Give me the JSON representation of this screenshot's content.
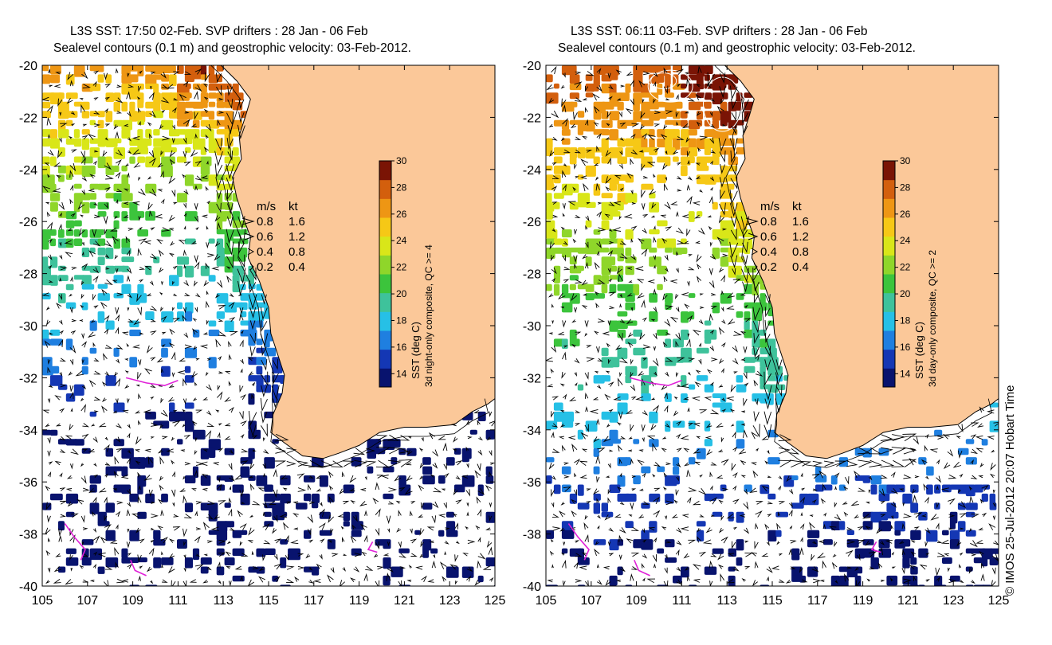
{
  "panels": [
    {
      "title_line1": "L3S SST: 17:50 02-Feb. SVP drifters : 28 Jan - 06 Feb",
      "title_line2": "Sealevel contours (0.1 m) and geostrophic velocity: 03-Feb-2012.",
      "colorbar_label_line1": "SST (deg C)",
      "colorbar_label_line2": "3d night-only composite, QC >= 4"
    },
    {
      "title_line1": "L3S SST: 06:11 03-Feb. SVP drifters : 28 Jan - 06 Feb",
      "title_line2": "Sealevel contours (0.1 m) and geostrophic velocity: 03-Feb-2012.",
      "colorbar_label_line1": "SST (deg C)",
      "colorbar_label_line2": "3d day-only composite, QC >= 2"
    }
  ],
  "axes": {
    "x_ticks": [
      "105",
      "107",
      "109",
      "111",
      "113",
      "115",
      "117",
      "119",
      "121",
      "123",
      "125"
    ],
    "y_ticks": [
      "-20",
      "-22",
      "-24",
      "-26",
      "-28",
      "-30",
      "-32",
      "-34",
      "-36",
      "-38",
      "-40"
    ]
  },
  "colorbar": {
    "ticks": [
      "30",
      "28",
      "26",
      "24",
      "22",
      "20",
      "18",
      "16",
      "14"
    ],
    "range": [
      13,
      30
    ],
    "colors": [
      "#08136e",
      "#1437b4",
      "#1f7fe0",
      "#26c0e6",
      "#3ec29b",
      "#3cc43c",
      "#8fd62a",
      "#d9e619",
      "#f6c816",
      "#ee9614",
      "#d35f0d",
      "#7a1405"
    ]
  },
  "legend": {
    "header_ms": "m/s",
    "header_kt": "kt",
    "rows": [
      {
        "ms": "0.8",
        "kt": "1.6"
      },
      {
        "ms": "0.6",
        "kt": "1.2"
      },
      {
        "ms": "0.4",
        "kt": "0.8"
      },
      {
        "ms": "0.2",
        "kt": "0.4"
      }
    ]
  },
  "land_color": "#fbc899",
  "drifter_color": "#e020d8",
  "credit": "© IMOS 25-Jul-2012 20:07 Hobart Time"
}
